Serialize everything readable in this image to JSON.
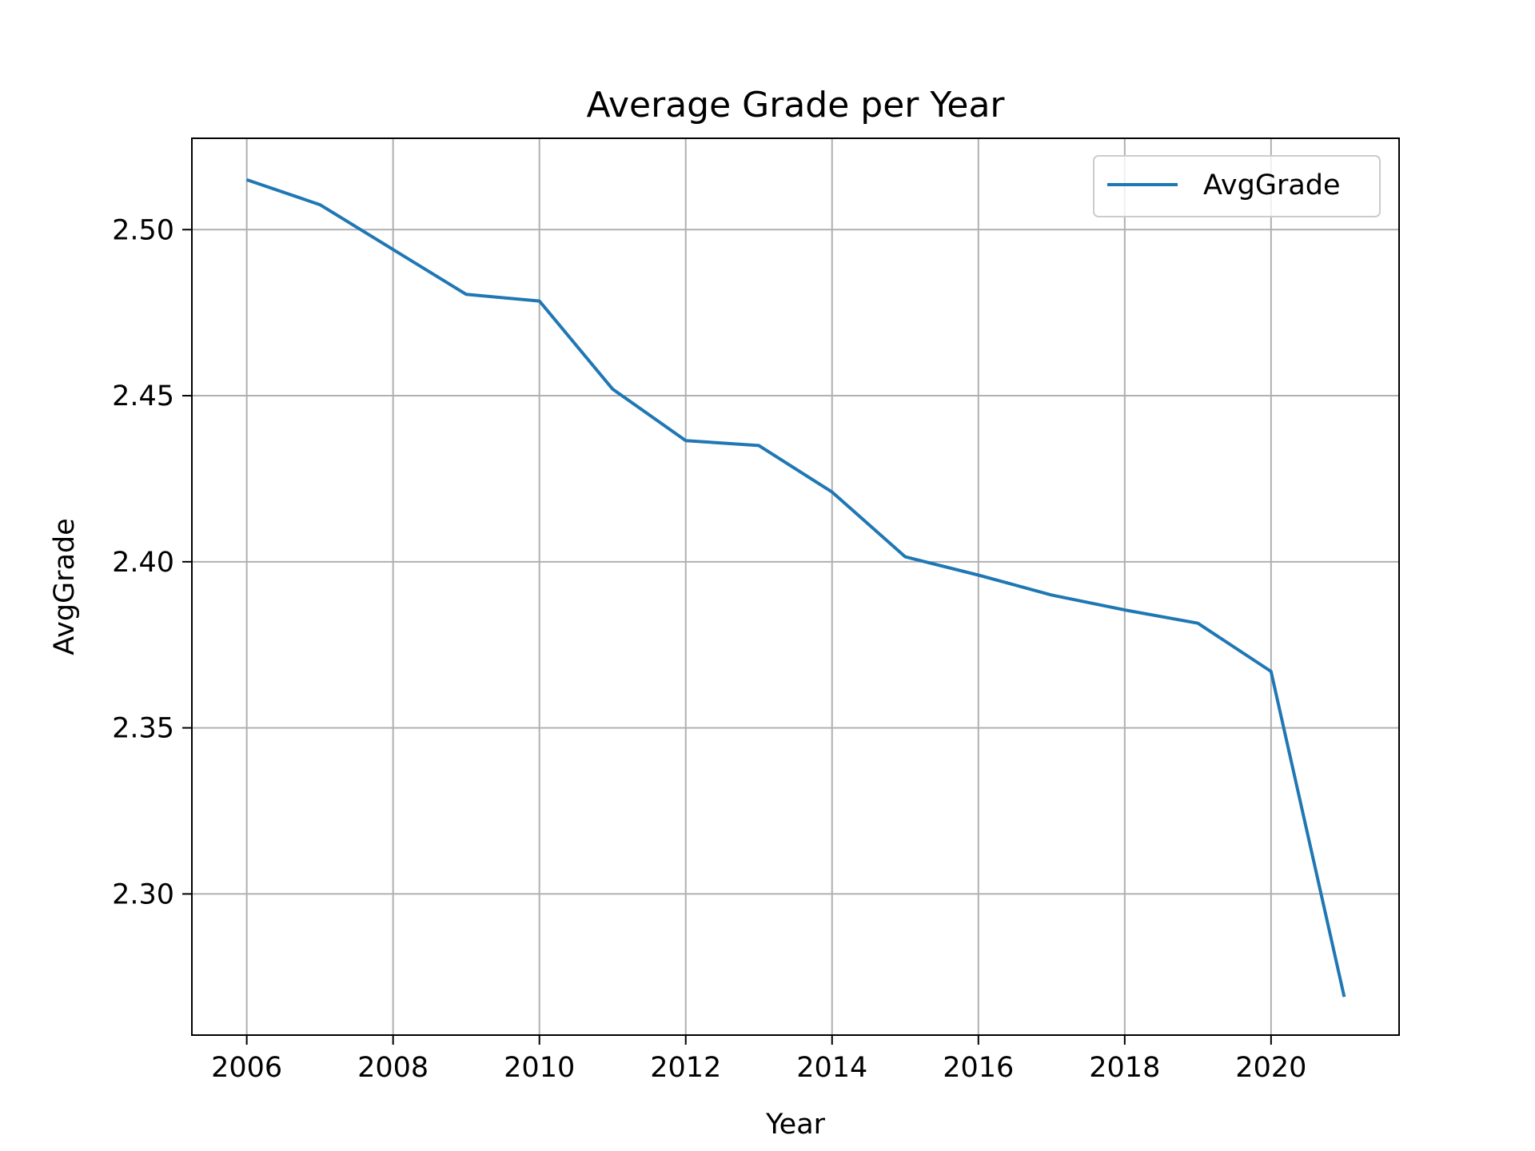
{
  "chart_data": {
    "type": "line",
    "title": "Average Grade per Year",
    "xlabel": "Year",
    "ylabel": "AvgGrade",
    "x": [
      2006,
      2007,
      2008,
      2009,
      2010,
      2011,
      2012,
      2013,
      2014,
      2015,
      2016,
      2017,
      2018,
      2019,
      2020,
      2021
    ],
    "series": [
      {
        "name": "AvgGrade",
        "color": "#1f77b4",
        "values": [
          2.515,
          2.5075,
          2.494,
          2.4805,
          2.4785,
          2.452,
          2.4365,
          2.435,
          2.421,
          2.4015,
          2.396,
          2.39,
          2.3855,
          2.3815,
          2.367,
          2.269
        ]
      }
    ],
    "xlim": [
      2005.25,
      2021.75
    ],
    "ylim": [
      2.2575,
      2.5275
    ],
    "xticks": [
      2006,
      2008,
      2010,
      2012,
      2014,
      2016,
      2018,
      2020
    ],
    "yticks": [
      2.3,
      2.35,
      2.4,
      2.45,
      2.5
    ],
    "ytick_labels": [
      "2.30",
      "2.35",
      "2.40",
      "2.45",
      "2.50"
    ],
    "grid": true,
    "legend_position": "upper right"
  }
}
